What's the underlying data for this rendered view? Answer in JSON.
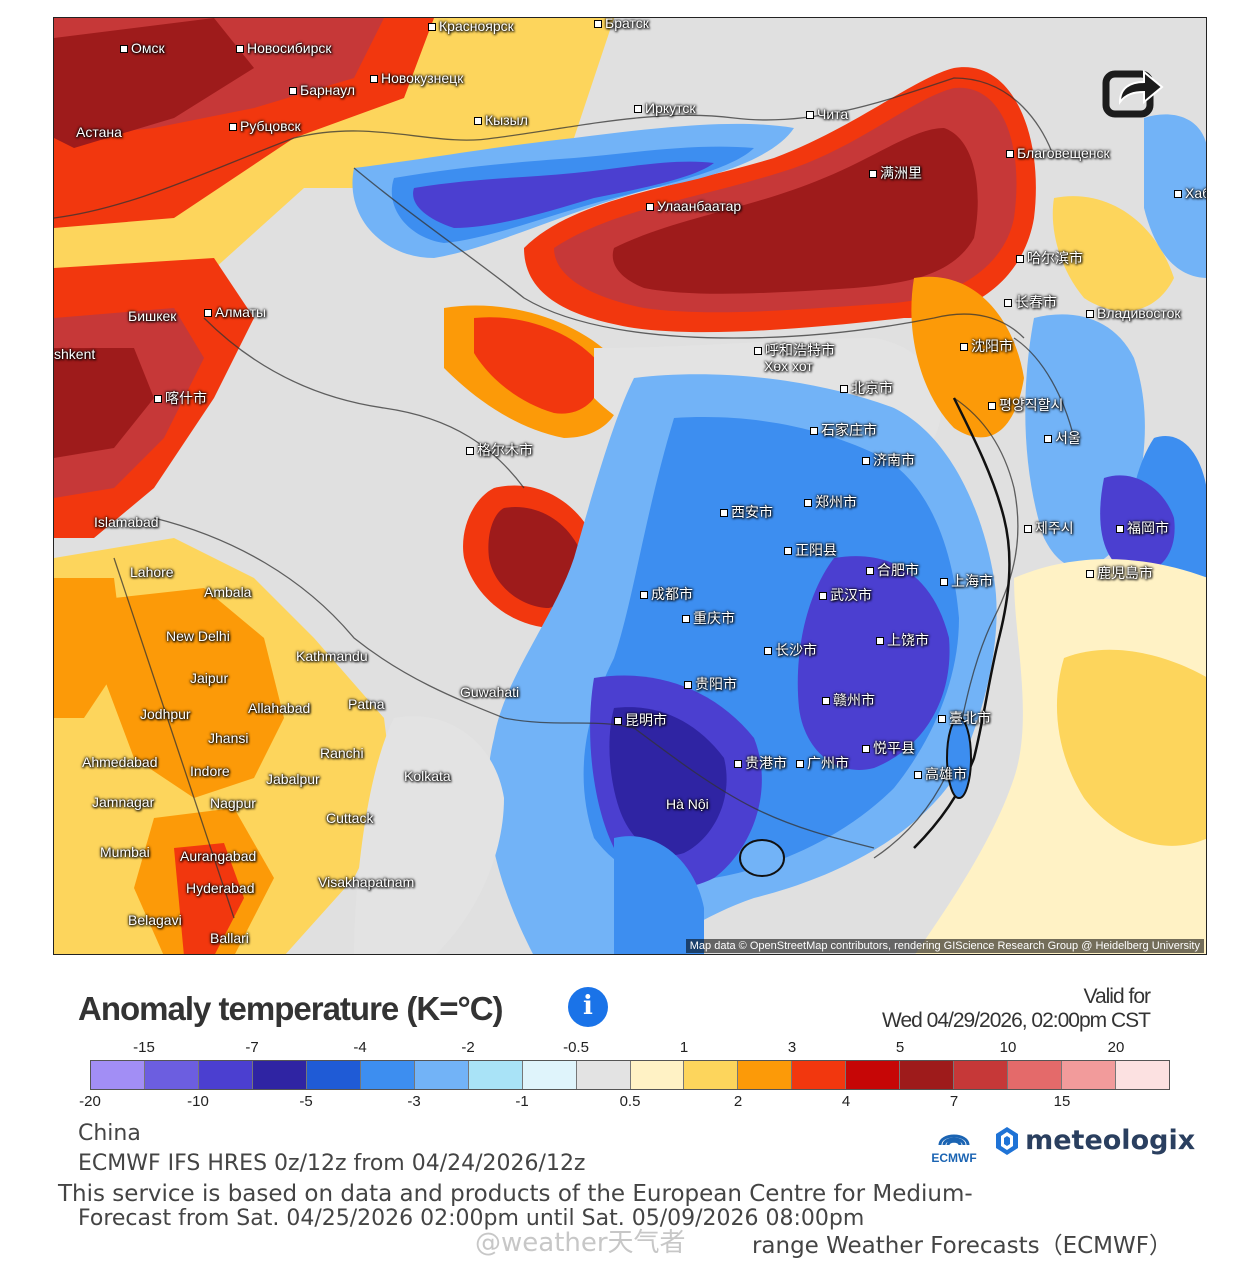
{
  "map": {
    "attribution": "Map data © OpenStreetMap contributors, rendering GIScience Research Group @ Heidelberg University",
    "share_icon": "share-icon",
    "cities": [
      {
        "id": "omsk",
        "name": "Омск"
      },
      {
        "id": "novosibirsk",
        "name": "Новосибирск"
      },
      {
        "id": "krasnoyarsk",
        "name": "Красноярск"
      },
      {
        "id": "bratsk",
        "name": "Братск"
      },
      {
        "id": "novokuznetsk",
        "name": "Новокузнецк"
      },
      {
        "id": "barnaul",
        "name": "Барнаул"
      },
      {
        "id": "irkutsk",
        "name": "Иркутск"
      },
      {
        "id": "chita",
        "name": "Чита"
      },
      {
        "id": "kyzyl",
        "name": "Кызыл"
      },
      {
        "id": "astana",
        "name": "Астана"
      },
      {
        "id": "rubtsovsk",
        "name": "Рубцовск"
      },
      {
        "id": "manzhouli",
        "name": "满洲里"
      },
      {
        "id": "blagoveshchensk",
        "name": "Благовещенск"
      },
      {
        "id": "khabarovsk",
        "name": "Хабаро"
      },
      {
        "id": "ulaanbaatar",
        "name": "Улаанбаатар"
      },
      {
        "id": "harbin",
        "name": "哈尔滨市"
      },
      {
        "id": "changchun",
        "name": "长春市"
      },
      {
        "id": "vladivostok",
        "name": "Владивосток"
      },
      {
        "id": "bishkek",
        "name": "Бишкек"
      },
      {
        "id": "almaty",
        "name": "Алматы"
      },
      {
        "id": "tashkent",
        "name": "shkent"
      },
      {
        "id": "kashgar",
        "name": "喀什市"
      },
      {
        "id": "hohhot",
        "name": "呼和浩特市"
      },
      {
        "id": "hohhot_mn",
        "name": "Хөх хот"
      },
      {
        "id": "shenyang",
        "name": "沈阳市"
      },
      {
        "id": "beijing",
        "name": "北京市"
      },
      {
        "id": "pyongyang",
        "name": "평양직할시"
      },
      {
        "id": "seoul",
        "name": "서울"
      },
      {
        "id": "shijiazhuang",
        "name": "石家庄市"
      },
      {
        "id": "jinan",
        "name": "济南市"
      },
      {
        "id": "golmud",
        "name": "格尔木市"
      },
      {
        "id": "xian",
        "name": "西安市"
      },
      {
        "id": "zhengzhou",
        "name": "郑州市"
      },
      {
        "id": "zhengyang",
        "name": "正阳县"
      },
      {
        "id": "hefei",
        "name": "合肥市"
      },
      {
        "id": "shanghai",
        "name": "上海市"
      },
      {
        "id": "wuhan",
        "name": "武汉市"
      },
      {
        "id": "chengdu",
        "name": "成都市"
      },
      {
        "id": "chongqing",
        "name": "重庆市"
      },
      {
        "id": "changsha",
        "name": "长沙市"
      },
      {
        "id": "shangrao",
        "name": "上饶市"
      },
      {
        "id": "islamabad",
        "name": "Islamabad"
      },
      {
        "id": "lahore",
        "name": "Lahore"
      },
      {
        "id": "ambala",
        "name": "Ambala"
      },
      {
        "id": "newdelhi",
        "name": "New Delhi"
      },
      {
        "id": "kathmandu",
        "name": "Kathmandu"
      },
      {
        "id": "guwahati",
        "name": "Guwahati"
      },
      {
        "id": "jaipur",
        "name": "Jaipur"
      },
      {
        "id": "jodhpur",
        "name": "Jodhpur"
      },
      {
        "id": "allahabad",
        "name": "Allahabad"
      },
      {
        "id": "patna",
        "name": "Patna"
      },
      {
        "id": "jhansi",
        "name": "Jhansi"
      },
      {
        "id": "ranchi",
        "name": "Ranchi"
      },
      {
        "id": "ahmedabad",
        "name": "Ahmedabad"
      },
      {
        "id": "indore",
        "name": "Indore"
      },
      {
        "id": "jabalpur",
        "name": "Jabalpur"
      },
      {
        "id": "kolkata",
        "name": "Kolkata"
      },
      {
        "id": "jamnagar",
        "name": "Jamnagar"
      },
      {
        "id": "nagpur",
        "name": "Nagpur"
      },
      {
        "id": "cuttack",
        "name": "Cuttack"
      },
      {
        "id": "mumbai",
        "name": "Mumbai"
      },
      {
        "id": "aurangabad",
        "name": "Aurangabad"
      },
      {
        "id": "hyderabad",
        "name": "Hyderabad"
      },
      {
        "id": "visakhapatnam",
        "name": "Visakhapatnam"
      },
      {
        "id": "belagavi",
        "name": "Belagavi"
      },
      {
        "id": "ballari",
        "name": "Ballari"
      },
      {
        "id": "guiyang",
        "name": "贵阳市"
      },
      {
        "id": "kunming",
        "name": "昆明市"
      },
      {
        "id": "ganzhou",
        "name": "赣州市"
      },
      {
        "id": "guangzhou",
        "name": "广州市"
      },
      {
        "id": "hechi",
        "name": "贵港市"
      },
      {
        "id": "taipei",
        "name": "臺北市"
      },
      {
        "id": "kaohsiung",
        "name": "高雄市"
      },
      {
        "id": "wuping",
        "name": "悦平县"
      },
      {
        "id": "hanoi",
        "name": "Hà Nội"
      },
      {
        "id": "fukuoka",
        "name": "福岡市"
      },
      {
        "id": "kagoshima",
        "name": "鹿児島市"
      },
      {
        "id": "jeju",
        "name": "제주시"
      }
    ]
  },
  "legend": {
    "title": "Anomaly temperature (K=°C)",
    "info_icon": "info-icon",
    "valid_label": "Valid for",
    "valid_time": "Wed 04/29/2026, 02:00pm CST",
    "colors": [
      "#a28ef5",
      "#6c5ee0",
      "#4b3fd0",
      "#2f24a3",
      "#1f5bd6",
      "#3d8ef0",
      "#72b3f7",
      "#a9e3f7",
      "#dff4fb",
      "#e3e3e3",
      "#fff2c5",
      "#fdd55c",
      "#fc9a08",
      "#f2370e",
      "#c60606",
      "#9e1b1b",
      "#c63838",
      "#e46a6a",
      "#f29b9b",
      "#fce1e1"
    ],
    "top_ticks": [
      "-15",
      "-7",
      "-4",
      "-2",
      "-0.5",
      "1",
      "3",
      "5",
      "10",
      "20"
    ],
    "bottom_ticks": [
      "-20",
      "-10",
      "-5",
      "-3",
      "-1",
      "0.5",
      "2",
      "4",
      "7",
      "15"
    ]
  },
  "footer": {
    "region": "China",
    "model": "ECMWF IFS HRES 0z/12z from 04/24/2026/12z",
    "service_line1": "This service is based on data and products of the European Centre for Medium-",
    "forecast_range": "Forecast from Sat. 04/25/2026 02:00pm until Sat. 05/09/2026 08:00pm",
    "service_line2": "range Weather Forecasts（ECMWF）",
    "ecmwf_label": "ECMWF",
    "brand": "meteologix",
    "watermark": "@weather天气者"
  }
}
